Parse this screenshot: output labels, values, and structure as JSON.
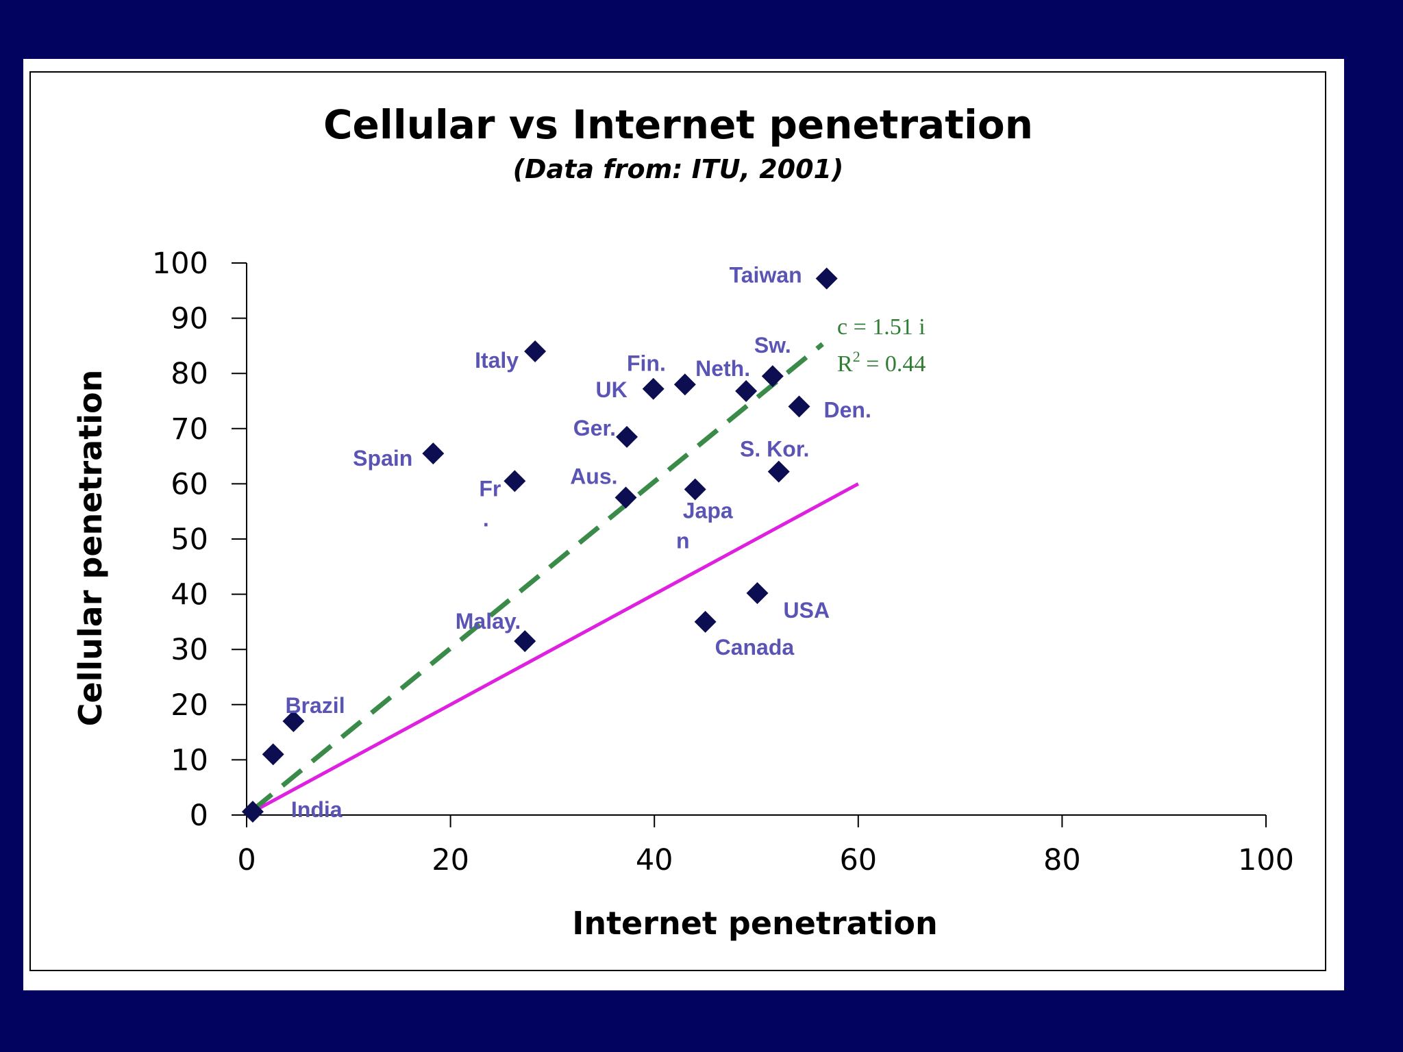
{
  "chart_data": {
    "type": "scatter",
    "title": "Cellular vs Internet penetration",
    "subtitle": "(Data from: ITU, 2001)",
    "xlabel": "Internet penetration",
    "ylabel": "Cellular penetration",
    "xlim": [
      0,
      100
    ],
    "ylim": [
      0,
      100
    ],
    "xticks": [
      0,
      20,
      40,
      60,
      80,
      100
    ],
    "yticks": [
      0,
      10,
      20,
      30,
      40,
      50,
      60,
      70,
      80,
      90,
      100
    ],
    "points": [
      {
        "name": "India",
        "x": 0.6,
        "y": 0.6,
        "label": "India"
      },
      {
        "name": "point-2",
        "x": 2.6,
        "y": 11,
        "label": ""
      },
      {
        "name": "Brazil",
        "x": 4.6,
        "y": 17,
        "label": "Brazil"
      },
      {
        "name": "Spain",
        "x": 18.3,
        "y": 65.5,
        "label": "Spain"
      },
      {
        "name": "France",
        "x": 26.3,
        "y": 60.5,
        "label": "Fr",
        "label2": "."
      },
      {
        "name": "Malaysia",
        "x": 27.3,
        "y": 31.5,
        "label": "Malay."
      },
      {
        "name": "Italy",
        "x": 28.3,
        "y": 84,
        "label": "Italy"
      },
      {
        "name": "Australia",
        "x": 37.2,
        "y": 57.5,
        "label": "Aus."
      },
      {
        "name": "Germany",
        "x": 37.3,
        "y": 68.5,
        "label": "Ger."
      },
      {
        "name": "UK",
        "x": 39.9,
        "y": 77.2,
        "label": "UK"
      },
      {
        "name": "Finland",
        "x": 43,
        "y": 78,
        "label": "Fin."
      },
      {
        "name": "Japan",
        "x": 44,
        "y": 59,
        "label": "Japa",
        "label2": "n"
      },
      {
        "name": "Canada",
        "x": 45,
        "y": 35,
        "label": "Canada"
      },
      {
        "name": "Netherlands",
        "x": 49,
        "y": 76.8,
        "label": "Neth."
      },
      {
        "name": "USA",
        "x": 50.1,
        "y": 40.2,
        "label": "USA"
      },
      {
        "name": "Sweden",
        "x": 51.6,
        "y": 79.5,
        "label": "Sw."
      },
      {
        "name": "South Korea",
        "x": 52.2,
        "y": 62.2,
        "label": "S. Kor."
      },
      {
        "name": "Denmark",
        "x": 54.2,
        "y": 74,
        "label": "Den."
      },
      {
        "name": "Taiwan",
        "x": 56.9,
        "y": 97.2,
        "label": "Taiwan"
      }
    ],
    "fit_line": {
      "slope": 1.51,
      "x_range": [
        0.6,
        56.5
      ],
      "color": "#3a8a4a",
      "style": "dashed"
    },
    "reference_line": {
      "slope": 1.0,
      "x_range": [
        0,
        60
      ],
      "color": "#e020e0",
      "style": "solid"
    },
    "annotation": {
      "line1": "c = 1.51 i",
      "r_prefix": "R",
      "r_sup": "2",
      "r_suffix": " = 0.44"
    },
    "colors": {
      "slide_bg": "#02025f",
      "panel_bg": "#ffffff",
      "marker": "#0d0d52",
      "label": "#5a54b4"
    }
  }
}
